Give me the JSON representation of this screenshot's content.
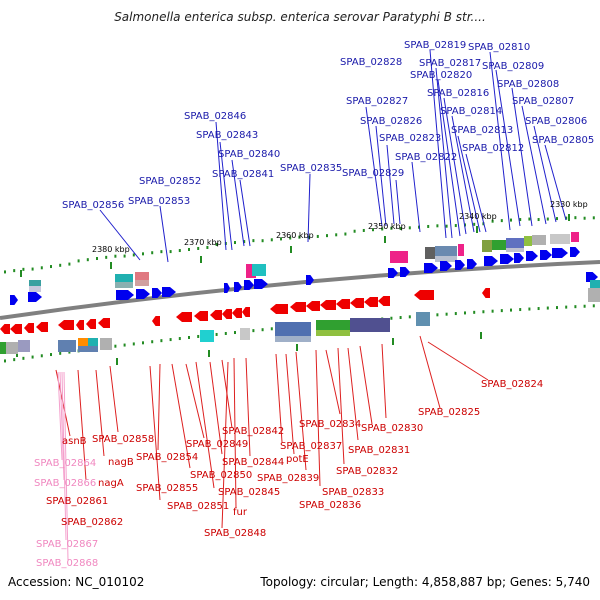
{
  "title": "Salmonella enterica subsp. enterica serovar Paratyphi B str....",
  "footer": {
    "accession": "Accession: NC_010102",
    "topology": "Topology: circular; Length: 4,858,887 bp; Genes: 5,740"
  },
  "colors": {
    "forward": "#0000ee",
    "reverse": "#ee0000",
    "pseudo": "#f090c8",
    "backbone": "#808080",
    "ticks": "#228b22"
  },
  "kbp_labels": [
    "2380 kbp",
    "2370 kbp",
    "2360 kbp",
    "2350 kbp",
    "2340 kbp",
    "2330 kbp"
  ],
  "top_labels": [
    "SPAB_02819",
    "SPAB_02810",
    "SPAB_02817",
    "SPAB_02828",
    "SPAB_02809",
    "SPAB_02820",
    "SPAB_02808",
    "SPAB_02816",
    "SPAB_02827",
    "SPAB_02807",
    "SPAB_02814",
    "SPAB_02826",
    "SPAB_02806",
    "SPAB_02813",
    "SPAB_02846",
    "SPAB_02823",
    "SPAB_02805",
    "SPAB_02843",
    "SPAB_02812",
    "SPAB_02822",
    "SPAB_02840",
    "SPAB_02835",
    "SPAB_02829",
    "SPAB_02841",
    "SPAB_02852",
    "SPAB_02856",
    "SPAB_02853"
  ],
  "bottom_labels": [
    "SPAB_02824",
    "SPAB_02825",
    "SPAB_02842",
    "SPAB_02834",
    "SPAB_02830",
    "asnB",
    "SPAB_02858",
    "SPAB_02849",
    "SPAB_02837",
    "SPAB_02831",
    "SPAB_02854",
    "SPAB_02844",
    "potE",
    "SPAB_02864",
    "nagB",
    "SPAB_02850",
    "SPAB_02839",
    "SPAB_02832",
    "SPAB_02866",
    "nagA",
    "SPAB_02855",
    "SPAB_02845",
    "SPAB_02833",
    "SPAB_02861",
    "SPAB_02851",
    "fur",
    "SPAB_02836",
    "SPAB_02862",
    "SPAB_02848",
    "SPAB_02867",
    "SPAB_02868"
  ]
}
